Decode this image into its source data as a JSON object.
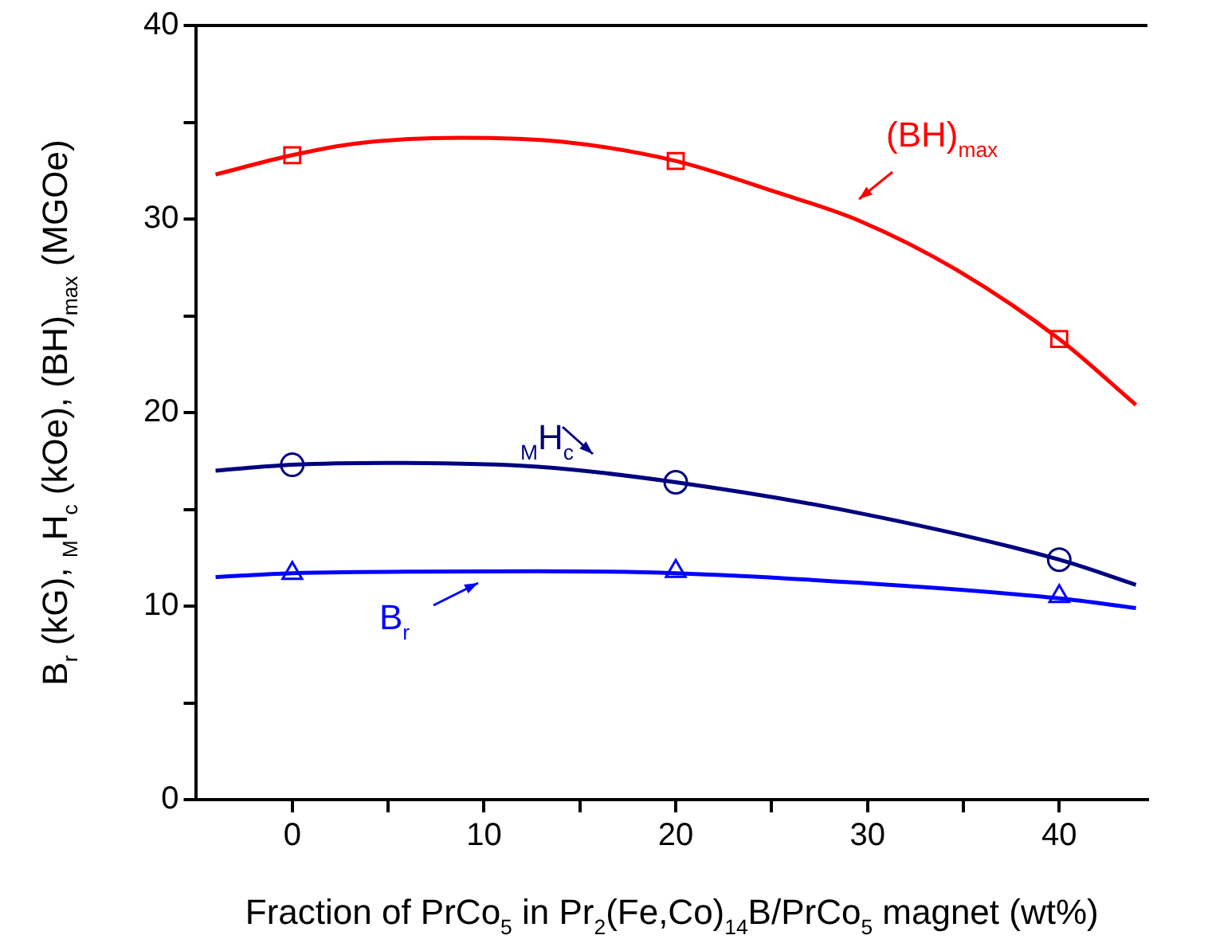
{
  "chart_data": {
    "type": "scatter",
    "xlabel": "Fraction of PrCo$_{5}$ in Pr$_{2}$(Fe,Co)$_{14}$B/PrCo$_{5}$ magnet (wt%)",
    "ylabel": "B$_{r}$ (kG), $_{M}$H$_{c}$ (kOe), (BH)$_{max}$ (MGOe)",
    "xlim": [
      -5,
      44.6
    ],
    "xticks": [
      0,
      {
        "value": 5,
        "label": null
      },
      10,
      {
        "value": 15,
        "label": null
      },
      20,
      {
        "value": 25,
        "label": null
      },
      30,
      {
        "value": 35,
        "label": null
      },
      40
    ],
    "ylim": [
      0,
      40
    ],
    "yticks": [
      0,
      {
        "value": 5,
        "label": null
      },
      10,
      {
        "value": 15,
        "label": null
      },
      20,
      {
        "value": 25,
        "label": null
      },
      30,
      {
        "value": 35,
        "label": null
      },
      40
    ],
    "grid": false,
    "legend": false,
    "series": [
      {
        "marker": "square",
        "color": "#ff0000",
        "x": [
          0,
          20,
          40
        ],
        "values": [
          33.3,
          33.0,
          23.8
        ]
      },
      {
        "marker": "circle",
        "color": "#000080",
        "x": [
          0,
          20,
          40
        ],
        "values": [
          17.3,
          16.4,
          12.4
        ]
      },
      {
        "marker": "triangle",
        "color": "#0000ff",
        "x": [
          0,
          20,
          40
        ],
        "values": [
          11.7,
          11.8,
          10.5
        ]
      },
      {
        "type": "line",
        "marker": "none",
        "line_style": "solid",
        "color": "#ff0000",
        "x": [
          -4,
          0,
          3.3,
          8.8,
          14,
          20,
          25.2,
          29.6,
          34.6,
          40,
          44
        ],
        "values": [
          32.3,
          33.3,
          33.9,
          34.2,
          34.0,
          33.0,
          31.4,
          29.9,
          27.4,
          23.8,
          20.4
        ]
      },
      {
        "type": "line",
        "marker": "none",
        "line_style": "solid",
        "color": "#000080",
        "x": [
          -4,
          0,
          4.9,
          12.8,
          20,
          29.6,
          40,
          44
        ],
        "values": [
          17.0,
          17.3,
          17.4,
          17.2,
          16.4,
          14.8,
          12.4,
          11.1
        ]
      },
      {
        "type": "line",
        "marker": "none",
        "line_style": "solid",
        "color": "#0000ff",
        "x": [
          -4,
          0,
          12.8,
          20,
          29.6,
          40,
          44
        ],
        "values": [
          11.5,
          11.7,
          11.8,
          11.7,
          11.2,
          10.4,
          9.9
        ]
      }
    ],
    "annotations": [
      "(BH)$_{max}$",
      "$_{M}$H$_{c}$",
      "B$_{r}$"
    ]
  }
}
